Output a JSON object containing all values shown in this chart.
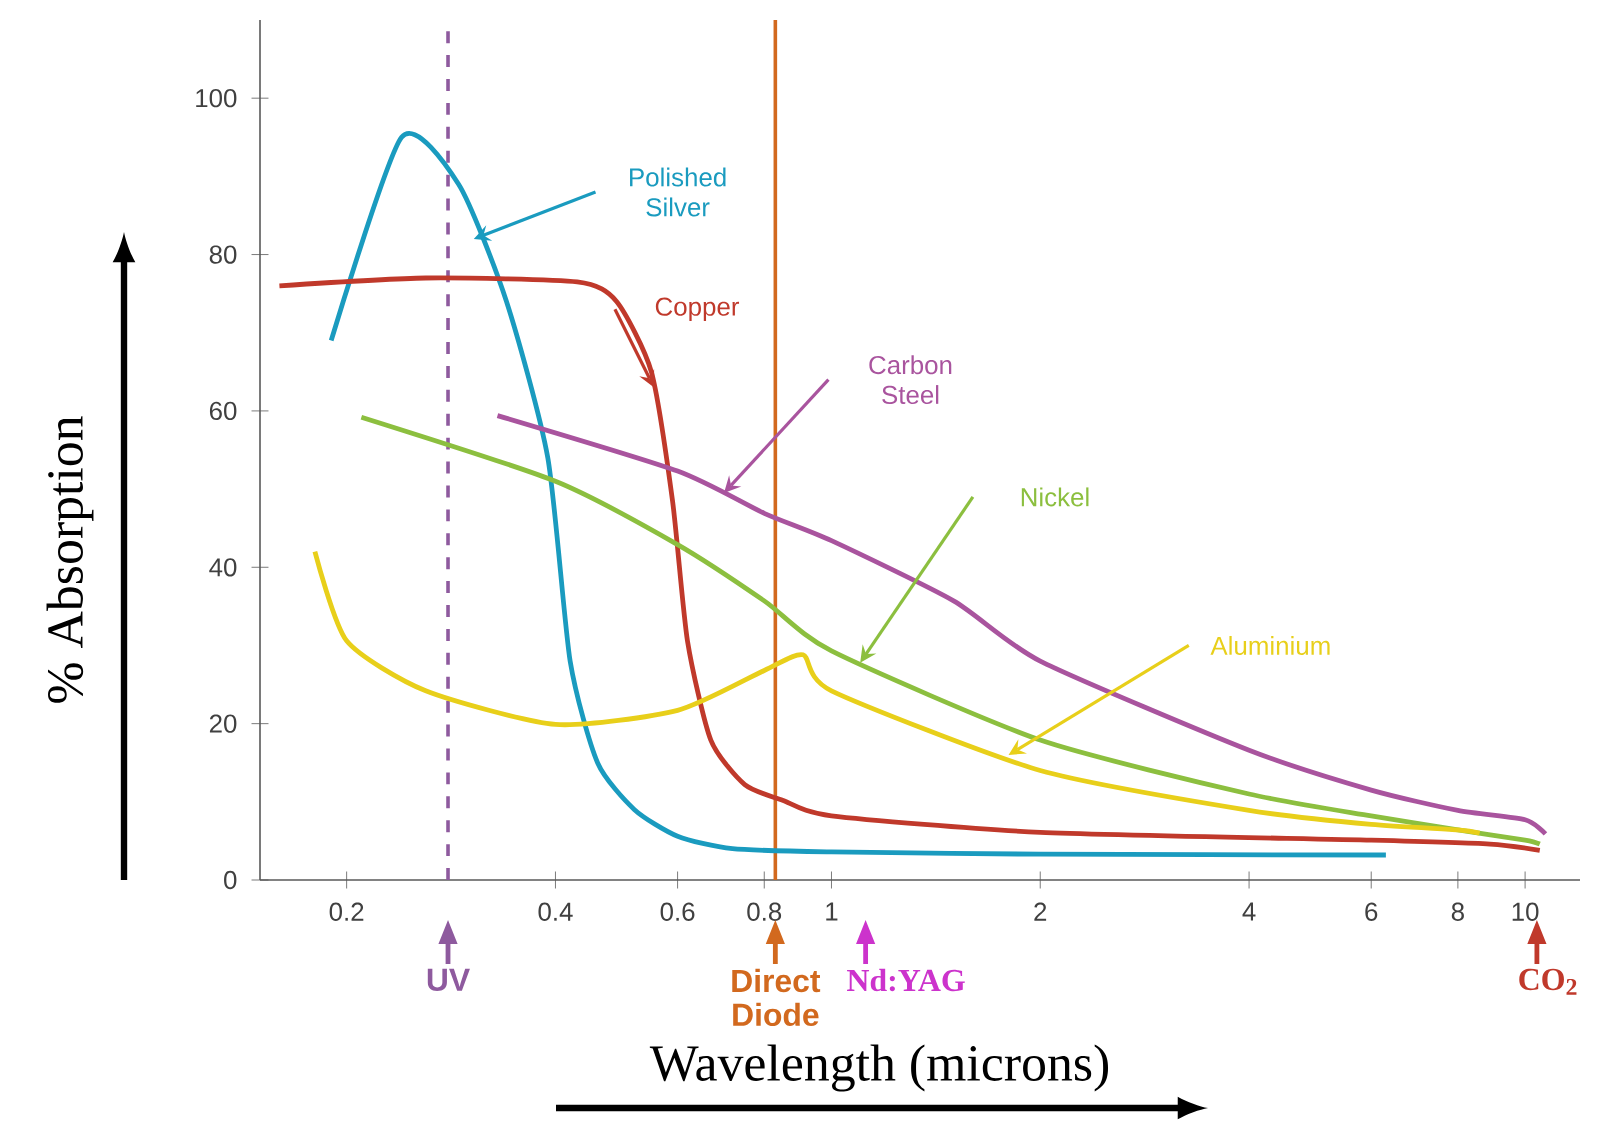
{
  "chart_data": {
    "type": "line",
    "xlabel": "Wavelength (microns)",
    "ylabel": "% Absorption",
    "log": "x",
    "xlim": [
      0.15,
      12
    ],
    "ylim": [
      0,
      110
    ],
    "xticks": [
      0.2,
      0.4,
      0.6,
      0.8,
      1,
      2,
      4,
      6,
      8,
      10
    ],
    "yticks": [
      0,
      20,
      40,
      60,
      80,
      100
    ],
    "grid": false,
    "series": [
      {
        "name": "Polished Silver",
        "color": "#1a9bbf",
        "x": [
          0.19,
          0.24,
          0.29,
          0.34,
          0.39,
          0.42,
          0.46,
          0.52,
          0.6,
          0.72,
          1,
          2,
          6.3
        ],
        "values": [
          69,
          95,
          89,
          74,
          54,
          28,
          15,
          9,
          5.6,
          4,
          3.6,
          3.3,
          3.2
        ]
      },
      {
        "name": "Copper",
        "color": "#c0392b",
        "x": [
          0.16,
          0.26,
          0.43,
          0.49,
          0.55,
          0.59,
          0.62,
          0.67,
          0.75,
          0.85,
          1,
          2,
          6,
          8.9,
          10.5
        ],
        "values": [
          76,
          77,
          76.5,
          74,
          65,
          48.5,
          30.6,
          17.9,
          12.2,
          10.2,
          8.2,
          6.1,
          5.1,
          4.6,
          3.8
        ]
      },
      {
        "name": "Carbon Steel",
        "color": "#a9549e",
        "x": [
          0.33,
          0.6,
          0.8,
          1,
          1.5,
          2,
          4,
          6,
          8,
          10,
          10.7
        ],
        "values": [
          59.4,
          52.3,
          46.9,
          43.4,
          35.7,
          28,
          16.6,
          11.5,
          8.9,
          7.7,
          5.9
        ]
      },
      {
        "name": "Nickel",
        "color": "#8cbf3f",
        "x": [
          0.21,
          0.4,
          0.6,
          0.8,
          1,
          2,
          4,
          6,
          8,
          10,
          10.5
        ],
        "values": [
          59.2,
          51,
          42.9,
          35.7,
          29.3,
          17.9,
          11,
          8.2,
          6.4,
          5.1,
          4.6
        ]
      },
      {
        "name": "Aluminium",
        "color": "#e8cf1a",
        "x": [
          0.18,
          0.2,
          0.26,
          0.4,
          0.6,
          0.8,
          0.91,
          1,
          2,
          4,
          6,
          8,
          8.6
        ],
        "values": [
          42,
          30.6,
          24.2,
          19.9,
          21.7,
          26.8,
          28.8,
          24.2,
          14,
          8.9,
          7.1,
          6.4,
          6
        ]
      }
    ],
    "ref_lines": [
      {
        "axis": "x",
        "value": 0.28,
        "label": "UV",
        "color": "#8e5a9e",
        "line_style": "dashed"
      },
      {
        "axis": "x",
        "value": 0.83,
        "label": "Direct Diode",
        "color": "#d2691e",
        "line_style": "solid"
      }
    ],
    "annotations": [
      "Nd:YAG",
      "CO$_{2}$"
    ]
  }
}
